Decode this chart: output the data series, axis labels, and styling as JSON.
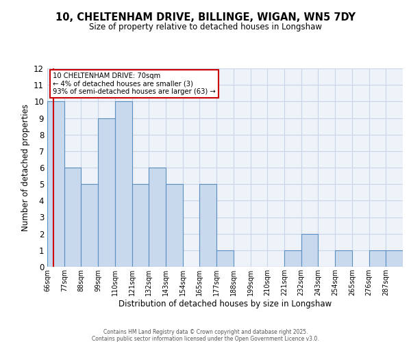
{
  "title_line1": "10, CHELTENHAM DRIVE, BILLINGE, WIGAN, WN5 7DY",
  "title_line2": "Size of property relative to detached houses in Longshaw",
  "xlabel": "Distribution of detached houses by size in Longshaw",
  "ylabel": "Number of detached properties",
  "bin_labels": [
    "66sqm",
    "77sqm",
    "88sqm",
    "99sqm",
    "110sqm",
    "121sqm",
    "132sqm",
    "143sqm",
    "154sqm",
    "165sqm",
    "177sqm",
    "188sqm",
    "199sqm",
    "210sqm",
    "221sqm",
    "232sqm",
    "243sqm",
    "254sqm",
    "265sqm",
    "276sqm",
    "287sqm"
  ],
  "bin_values": [
    10,
    6,
    5,
    9,
    10,
    5,
    6,
    5,
    0,
    5,
    1,
    0,
    0,
    0,
    1,
    2,
    0,
    1,
    0,
    1,
    1
  ],
  "bar_facecolor": "#c9d9ed",
  "bar_edgecolor": "#5a8fc2",
  "ylim": [
    0,
    12
  ],
  "yticks": [
    0,
    1,
    2,
    3,
    4,
    5,
    6,
    7,
    8,
    9,
    10,
    11,
    12
  ],
  "marker_color": "#cc0000",
  "annotation_title": "10 CHELTENHAM DRIVE: 70sqm",
  "annotation_line2": "← 4% of detached houses are smaller (3)",
  "annotation_line3": "93% of semi-detached houses are larger (63) →",
  "annotation_box_color": "#cc0000",
  "grid_color": "#c8d4e8",
  "bg_color": "#eef2f9",
  "footer_line1": "Contains HM Land Registry data © Crown copyright and database right 2025.",
  "footer_line2": "Contains public sector information licensed under the Open Government Licence v3.0."
}
